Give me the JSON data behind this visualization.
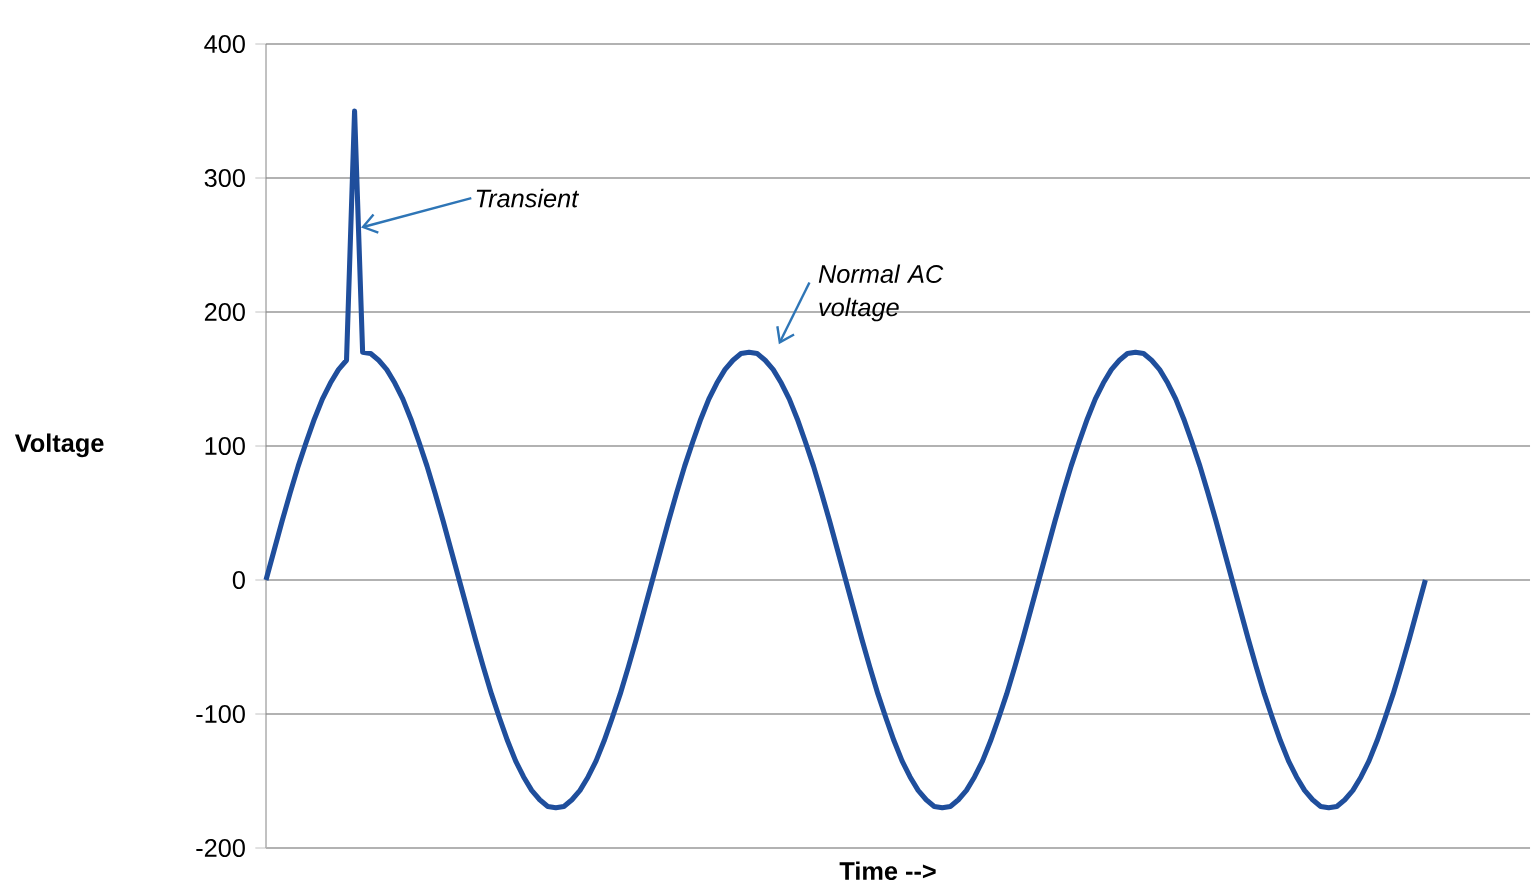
{
  "chart_data": {
    "type": "line",
    "categories": [
      null,
      null,
      null,
      null,
      null,
      null,
      null,
      null,
      null,
      null,
      null,
      null,
      null,
      null,
      null,
      null,
      null,
      null,
      null,
      null,
      null,
      null,
      null,
      null,
      null,
      null,
      null,
      null,
      null,
      null,
      null,
      null,
      null,
      null,
      null,
      null,
      null,
      null,
      null,
      null,
      null,
      null,
      null,
      null,
      null,
      null,
      null,
      null,
      null,
      null,
      null,
      null,
      null,
      null,
      null,
      null,
      null,
      null,
      null,
      null,
      null,
      null,
      null,
      null,
      null,
      null,
      null,
      null,
      null,
      null,
      null,
      null,
      null,
      null,
      null,
      null,
      null,
      null,
      null,
      null,
      null,
      null,
      null,
      null,
      null,
      null,
      null,
      null,
      null,
      null,
      null,
      null,
      null,
      null,
      null,
      null,
      null,
      null,
      null,
      null,
      null,
      null,
      null,
      null,
      null,
      null,
      null,
      null,
      null,
      null,
      null,
      null,
      null,
      null,
      null,
      null,
      null,
      null,
      null,
      null,
      null,
      null,
      null,
      null,
      null,
      null,
      null,
      null,
      null,
      null,
      null,
      null,
      null,
      null,
      null,
      null,
      null,
      null,
      null,
      null,
      null,
      null,
      null,
      null,
      null,
      null,
      null,
      null,
      null,
      null,
      null,
      null,
      null,
      null,
      null,
      null,
      null,
      null
    ],
    "values": [
      0,
      22,
      44,
      65,
      85,
      103,
      120,
      135,
      147,
      157,
      164,
      350,
      170,
      169,
      164,
      157,
      147,
      135,
      120,
      103,
      85,
      65,
      44,
      22,
      0,
      -22,
      -44,
      -65,
      -85,
      -103,
      -120,
      -135,
      -147,
      -157,
      -164,
      -169,
      -170,
      -169,
      -164,
      -157,
      -147,
      -135,
      -120,
      -103,
      -85,
      -65,
      -44,
      -22,
      0,
      22,
      44,
      65,
      85,
      103,
      120,
      135,
      147,
      157,
      164,
      169,
      170,
      169,
      164,
      157,
      147,
      135,
      120,
      103,
      85,
      65,
      44,
      22,
      0,
      -22,
      -44,
      -65,
      -85,
      -103,
      -120,
      -135,
      -147,
      -157,
      -164,
      -169,
      -170,
      -169,
      -164,
      -157,
      -147,
      -135,
      -120,
      -103,
      -85,
      -65,
      -44,
      -22,
      0,
      22,
      44,
      65,
      85,
      103,
      120,
      135,
      147,
      157,
      164,
      169,
      170,
      169,
      164,
      157,
      147,
      135,
      120,
      103,
      85,
      65,
      44,
      22,
      0,
      -22,
      -44,
      -65,
      -85,
      -103,
      -120,
      -135,
      -147,
      -157,
      -164,
      -169,
      -170,
      -169,
      -164,
      -157,
      -147,
      -135,
      -120,
      -103,
      -85,
      -65,
      -44,
      -22,
      0,
      null,
      null,
      null,
      null,
      null,
      null,
      null,
      null,
      null,
      null,
      null,
      null,
      null
    ],
    "color": "#1f4e9c",
    "xlabel": "Time -->",
    "ylabel": "Voltage",
    "ylim": [
      -200,
      400
    ],
    "yticks": [
      -200,
      -100,
      0,
      100,
      200,
      300,
      400
    ],
    "grid": "y",
    "tick_labels": "y",
    "annotations": [
      "Transient",
      "Normal AC voltage"
    ]
  }
}
